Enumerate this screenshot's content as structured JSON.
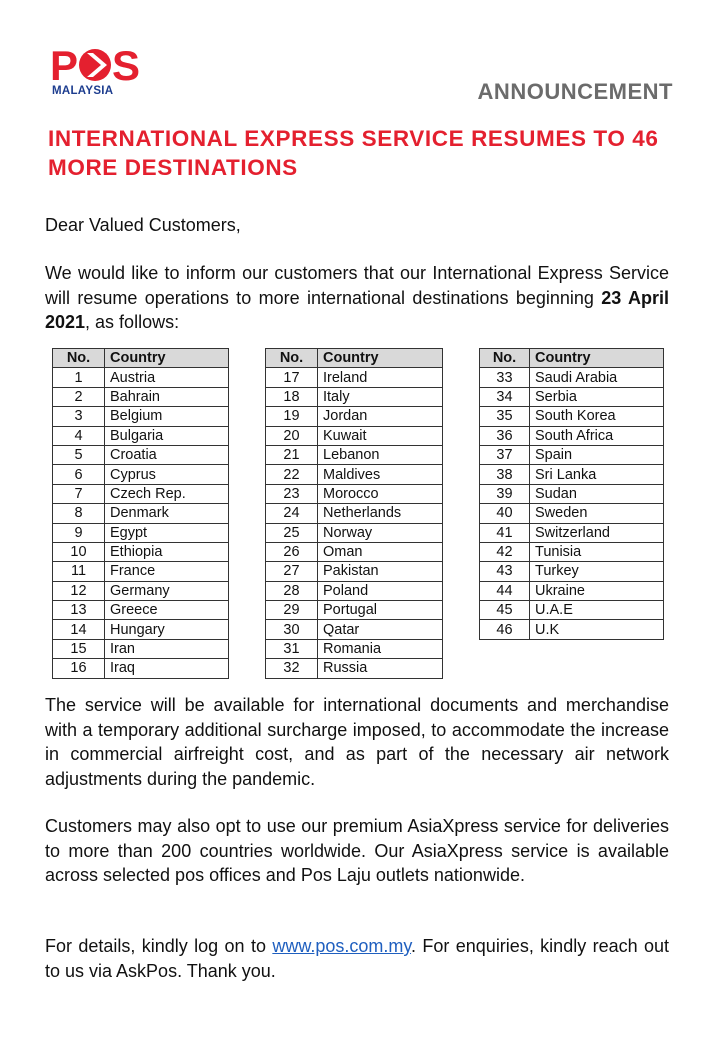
{
  "logo": {
    "brand": "POS",
    "sub": "MALAYSIA",
    "color": "#e4202f",
    "sub_color": "#1d3d8f"
  },
  "header": {
    "announcement": "ANNOUNCEMENT",
    "title": "INTERNATIONAL EXPRESS SERVICE RESUMES TO 46 MORE DESTINATIONS"
  },
  "greeting": "Dear Valued Customers,",
  "intro": {
    "before": "We would like to inform our customers that our International Express Service will resume operations to more international destinations beginning ",
    "date": "23 April 2021",
    "after": ", as follows:"
  },
  "table_headers": {
    "no": "No.",
    "country": "Country"
  },
  "tables": [
    [
      [
        "1",
        "Austria"
      ],
      [
        "2",
        "Bahrain"
      ],
      [
        "3",
        "Belgium"
      ],
      [
        "4",
        "Bulgaria"
      ],
      [
        "5",
        "Croatia"
      ],
      [
        "6",
        "Cyprus"
      ],
      [
        "7",
        "Czech Rep."
      ],
      [
        "8",
        "Denmark"
      ],
      [
        "9",
        "Egypt"
      ],
      [
        "10",
        "Ethiopia"
      ],
      [
        "11",
        "France"
      ],
      [
        "12",
        "Germany"
      ],
      [
        "13",
        "Greece"
      ],
      [
        "14",
        "Hungary"
      ],
      [
        "15",
        "Iran"
      ],
      [
        "16",
        "Iraq"
      ]
    ],
    [
      [
        "17",
        "Ireland"
      ],
      [
        "18",
        "Italy"
      ],
      [
        "19",
        "Jordan"
      ],
      [
        "20",
        "Kuwait"
      ],
      [
        "21",
        "Lebanon"
      ],
      [
        "22",
        "Maldives"
      ],
      [
        "23",
        "Morocco"
      ],
      [
        "24",
        "Netherlands"
      ],
      [
        "25",
        "Norway"
      ],
      [
        "26",
        "Oman"
      ],
      [
        "27",
        "Pakistan"
      ],
      [
        "28",
        "Poland"
      ],
      [
        "29",
        "Portugal"
      ],
      [
        "30",
        "Qatar"
      ],
      [
        "31",
        "Romania"
      ],
      [
        "32",
        "Russia"
      ]
    ],
    [
      [
        "33",
        "Saudi Arabia"
      ],
      [
        "34",
        "Serbia"
      ],
      [
        "35",
        "South Korea"
      ],
      [
        "36",
        "South Africa"
      ],
      [
        "37",
        "Spain"
      ],
      [
        "38",
        "Sri Lanka"
      ],
      [
        "39",
        "Sudan"
      ],
      [
        "40",
        "Sweden"
      ],
      [
        "41",
        "Switzerland"
      ],
      [
        "42",
        "Tunisia"
      ],
      [
        "43",
        "Turkey"
      ],
      [
        "44",
        "Ukraine"
      ],
      [
        "45",
        "U.A.E"
      ],
      [
        "46",
        "U.K"
      ]
    ]
  ],
  "para1": "The service will be available for international documents and merchandise with a temporary additional surcharge imposed, to accommodate the increase in commercial airfreight cost, and as part of the necessary air network adjustments during the pandemic.",
  "para2": "Customers may also opt to use our premium AsiaXpress service for deliveries to more than 200 countries worldwide. Our AsiaXpress service is available across selected pos offices and Pos Laju outlets nationwide.",
  "para3": {
    "before": "For details, kindly log on to ",
    "link": "www.pos.com.my",
    "after": ". For enquiries, kindly reach out to us via AskPos. Thank  you."
  }
}
